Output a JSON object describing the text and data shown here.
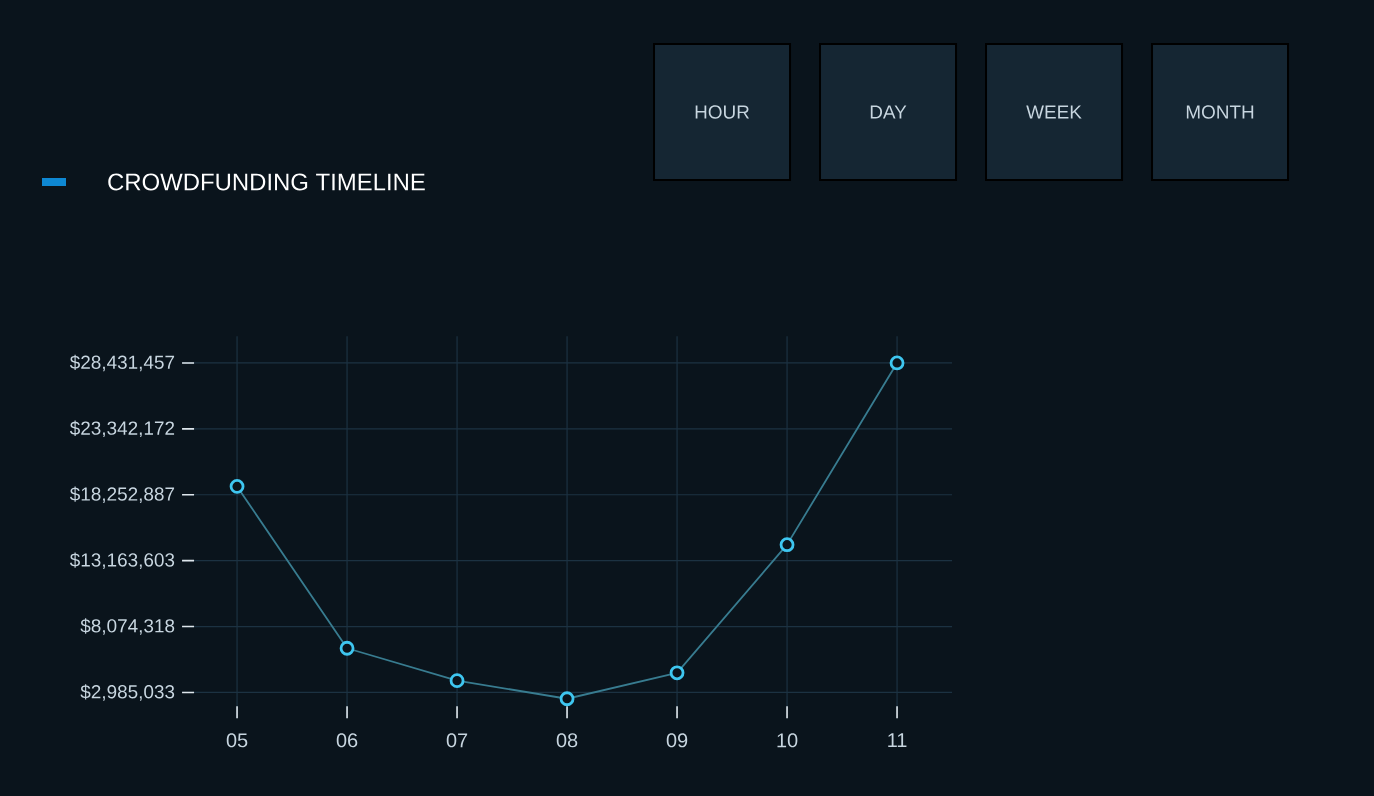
{
  "chart_data": {
    "type": "line",
    "title": "CROWDFUNDING TIMELINE",
    "categories": [
      "05",
      "06",
      "07",
      "08",
      "09",
      "10",
      "11"
    ],
    "series": [
      {
        "color": "#3ec6f0",
        "values": [
          18900000,
          6400000,
          3900000,
          2500000,
          4500000,
          14400000,
          28431457
        ]
      }
    ],
    "ylim": [
      1000000,
      30500000
    ],
    "yticks": [
      {
        "value": 2985033,
        "label": "$2,985,033"
      },
      {
        "value": 8074318,
        "label": "$8,074,318"
      },
      {
        "value": 13163603,
        "label": "$13,163,603"
      },
      {
        "value": 18252887,
        "label": "$18,252,887"
      },
      {
        "value": 23342172,
        "label": "$23,342,172"
      },
      {
        "value": 28431457,
        "label": "$28,431,457"
      }
    ],
    "grid": true,
    "marker": "circle",
    "line_style": "solid",
    "annotations": [
      "HOUR",
      "DAY",
      "WEEK",
      "MONTH"
    ]
  }
}
